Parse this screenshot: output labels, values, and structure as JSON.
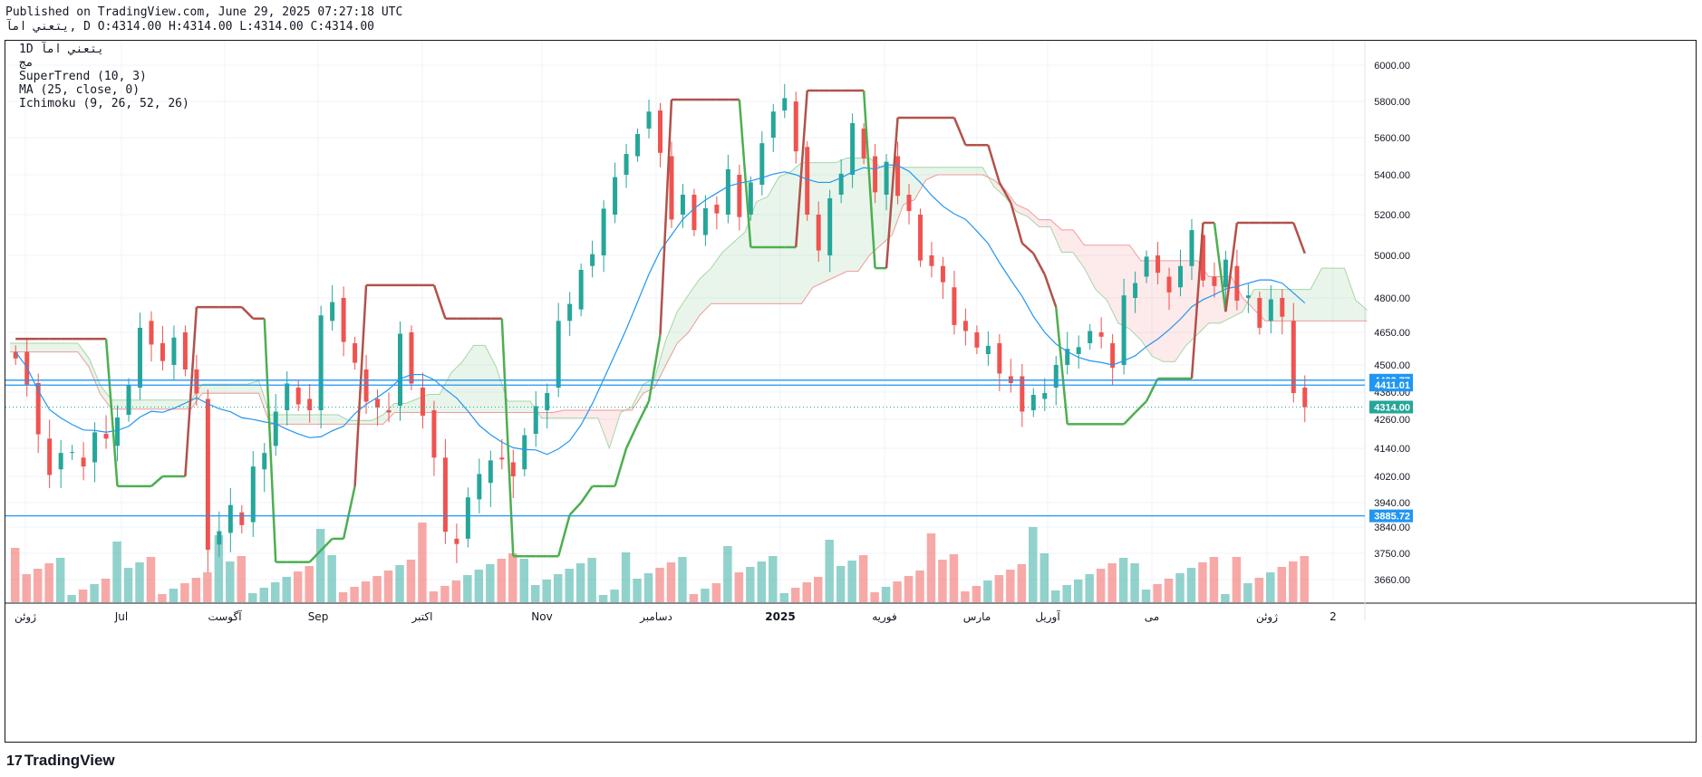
{
  "header": {
    "published": "Published on TradingView.com, June 29, 2025 07:27:18 UTC",
    "ohlc": "يتعني  امآ, D O:4314.00 H:4314.00 L:4314.00 C:4314.00"
  },
  "legend": {
    "symbol": "1D  يتعني  امآ",
    "sub": "مج",
    "supertrend": "SuperTrend (10, 3)",
    "ma": "MA (25, close, 0)",
    "ichimoku": "Ichimoku (9, 26, 52, 26)"
  },
  "brand": "TradingView",
  "colors": {
    "up": "#26a69a",
    "down": "#ef5350",
    "st_up": "#4caf50",
    "st_down": "#b2514a",
    "ma": "#2196f3",
    "hline": "#2196f3"
  },
  "chart_data": {
    "type": "candlestick",
    "y_ticks": [
      6000,
      5800,
      5600,
      5400,
      5200,
      5000,
      4800,
      4650,
      4500,
      4380,
      4260,
      4140,
      4020,
      3940,
      3840,
      3750,
      3660
    ],
    "y_tick_labels": [
      "6000.00",
      "5800.00",
      "5600.00",
      "5400.00",
      "5200.00",
      "5000.00",
      "4800.00",
      "4650.00",
      "4500.00",
      "4380.00",
      "4260.00",
      "4140.00",
      "4020.00",
      "3940.00",
      "3840.00",
      "3750.00",
      "3660.00"
    ],
    "x_labels": [
      "ژوئن",
      "Jul",
      "آگوست",
      "Sep",
      "اکتبر",
      "Nov",
      "دسامبر",
      "2025",
      "فوریه",
      "مارس",
      "آوریل",
      "می",
      "ژوئن",
      "2"
    ],
    "price_labels": [
      {
        "value": 4432.77,
        "text": "4432.77",
        "color": "#2196f3"
      },
      {
        "value": 4411.01,
        "text": "4411.01",
        "color": "#2196f3"
      },
      {
        "value": 4314.0,
        "text": "4314.00",
        "color": "#26a69a"
      },
      {
        "value": 3885.72,
        "text": "3885.72",
        "color": "#2196f3"
      }
    ],
    "horizontal_lines": [
      4432.77,
      4411.01,
      3885.72
    ],
    "last_price": 4314.0,
    "price_path": [
      4560,
      4420,
      4180,
      4050,
      4120,
      4100,
      4080,
      4200,
      4150,
      4280,
      4400,
      4700,
      4600,
      4500,
      4650,
      4480,
      4350,
      3780,
      3820,
      3900,
      3860,
      4050,
      4150,
      4300,
      4400,
      4350,
      4300,
      4700,
      4800,
      4600,
      4480,
      4350,
      4300,
      4320,
      4650,
      4400,
      4300,
      4100,
      3800,
      3800,
      3950,
      4000,
      4100,
      4080,
      4050,
      4200,
      4300,
      4400,
      4700,
      4750,
      4950,
      5000,
      5200,
      5400,
      5500,
      5650,
      5750,
      5500,
      5200,
      5300,
      5100,
      5250,
      5200,
      5400,
      5200,
      5350,
      5600,
      5750,
      5800,
      5550,
      5200,
      5000,
      5300,
      5400,
      5650,
      5500,
      5300,
      5500,
      5300,
      5200,
      5000,
      4950,
      4850,
      4700,
      4650,
      4550,
      4600,
      4450,
      4450,
      4300,
      4350,
      4400,
      4500,
      4550,
      4600,
      4650,
      4600,
      4500,
      4800,
      4900,
      5000,
      4900,
      4850,
      4950,
      5100,
      4900,
      4850,
      4950,
      4800,
      4800,
      4700,
      4800,
      4700,
      4400,
      4314
    ],
    "volume_max": 100
  }
}
